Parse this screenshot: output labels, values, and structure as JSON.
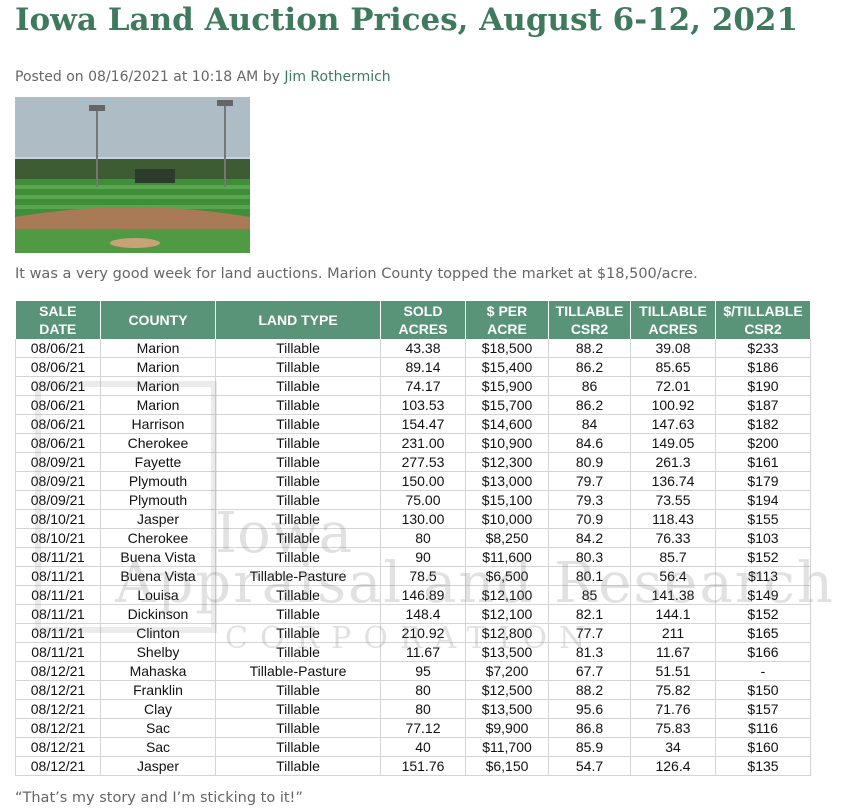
{
  "header": {
    "title": "Iowa Land Auction Prices, August 6-12, 2021",
    "posted": "Posted on 08/16/2021 at 10:18 AM by",
    "author": "Jim Rothermich"
  },
  "intro": "It was a very good week for land auctions. Marion County topped the market at $18,500/acre.",
  "watermark": {
    "line1": "Iowa",
    "line2": "Appraisal and Research",
    "line3": "CORPORATION"
  },
  "table": {
    "columns": [
      "SALE\nDATE",
      "COUNTY",
      "LAND TYPE",
      "SOLD\nACRES",
      "$ PER\nACRE",
      "TILLABLE\nCSR2",
      "TILLABLE\nACRES",
      "$/TILLABLE\nCSR2"
    ],
    "rows": [
      [
        "08/06/21",
        "Marion",
        "Tillable",
        "43.38",
        "$18,500",
        "88.2",
        "39.08",
        "$233"
      ],
      [
        "08/06/21",
        "Marion",
        "Tillable",
        "89.14",
        "$15,400",
        "86.2",
        "85.65",
        "$186"
      ],
      [
        "08/06/21",
        "Marion",
        "Tillable",
        "74.17",
        "$15,900",
        "86",
        "72.01",
        "$190"
      ],
      [
        "08/06/21",
        "Marion",
        "Tillable",
        "103.53",
        "$15,700",
        "86.2",
        "100.92",
        "$187"
      ],
      [
        "08/06/21",
        "Harrison",
        "Tillable",
        "154.47",
        "$14,600",
        "84",
        "147.63",
        "$182"
      ],
      [
        "08/06/21",
        "Cherokee",
        "Tillable",
        "231.00",
        "$10,900",
        "84.6",
        "149.05",
        "$200"
      ],
      [
        "08/09/21",
        "Fayette",
        "Tillable",
        "277.53",
        "$12,300",
        "80.9",
        "261.3",
        "$161"
      ],
      [
        "08/09/21",
        "Plymouth",
        "Tillable",
        "150.00",
        "$13,000",
        "79.7",
        "136.74",
        "$179"
      ],
      [
        "08/09/21",
        "Plymouth",
        "Tillable",
        "75.00",
        "$15,100",
        "79.3",
        "73.55",
        "$194"
      ],
      [
        "08/10/21",
        "Jasper",
        "Tillable",
        "130.00",
        "$10,000",
        "70.9",
        "118.43",
        "$155"
      ],
      [
        "08/10/21",
        "Cherokee",
        "Tillable",
        "80",
        "$8,250",
        "84.2",
        "76.33",
        "$103"
      ],
      [
        "08/11/21",
        "Buena Vista",
        "Tillable",
        "90",
        "$11,600",
        "80.3",
        "85.7",
        "$152"
      ],
      [
        "08/11/21",
        "Buena Vista",
        "Tillable-Pasture",
        "78.5",
        "$6,500",
        "80.1",
        "56.4",
        "$113"
      ],
      [
        "08/11/21",
        "Louisa",
        "Tillable",
        "146.89",
        "$12,100",
        "85",
        "141.38",
        "$149"
      ],
      [
        "08/11/21",
        "Dickinson",
        "Tillable",
        "148.4",
        "$12,100",
        "82.1",
        "144.1",
        "$152"
      ],
      [
        "08/11/21",
        "Clinton",
        "Tillable",
        "210.92",
        "$12,800",
        "77.7",
        "211",
        "$165"
      ],
      [
        "08/11/21",
        "Shelby",
        "Tillable",
        "11.67",
        "$13,500",
        "81.3",
        "11.67",
        "$166"
      ],
      [
        "08/12/21",
        "Mahaska",
        "Tillable-Pasture",
        "95",
        "$7,200",
        "67.7",
        "51.51",
        "-"
      ],
      [
        "08/12/21",
        "Franklin",
        "Tillable",
        "80",
        "$12,500",
        "88.2",
        "75.82",
        "$150"
      ],
      [
        "08/12/21",
        "Clay",
        "Tillable",
        "80",
        "$13,500",
        "95.6",
        "71.76",
        "$157"
      ],
      [
        "08/12/21",
        "Sac",
        "Tillable",
        "77.12",
        "$9,900",
        "86.8",
        "75.83",
        "$116"
      ],
      [
        "08/12/21",
        "Sac",
        "Tillable",
        "40",
        "$11,700",
        "85.9",
        "34",
        "$160"
      ],
      [
        "08/12/21",
        "Jasper",
        "Tillable",
        "151.76",
        "$6,150",
        "54.7",
        "126.4",
        "$135"
      ]
    ]
  },
  "quote": "“That’s my story and I’m sticking to it!”"
}
